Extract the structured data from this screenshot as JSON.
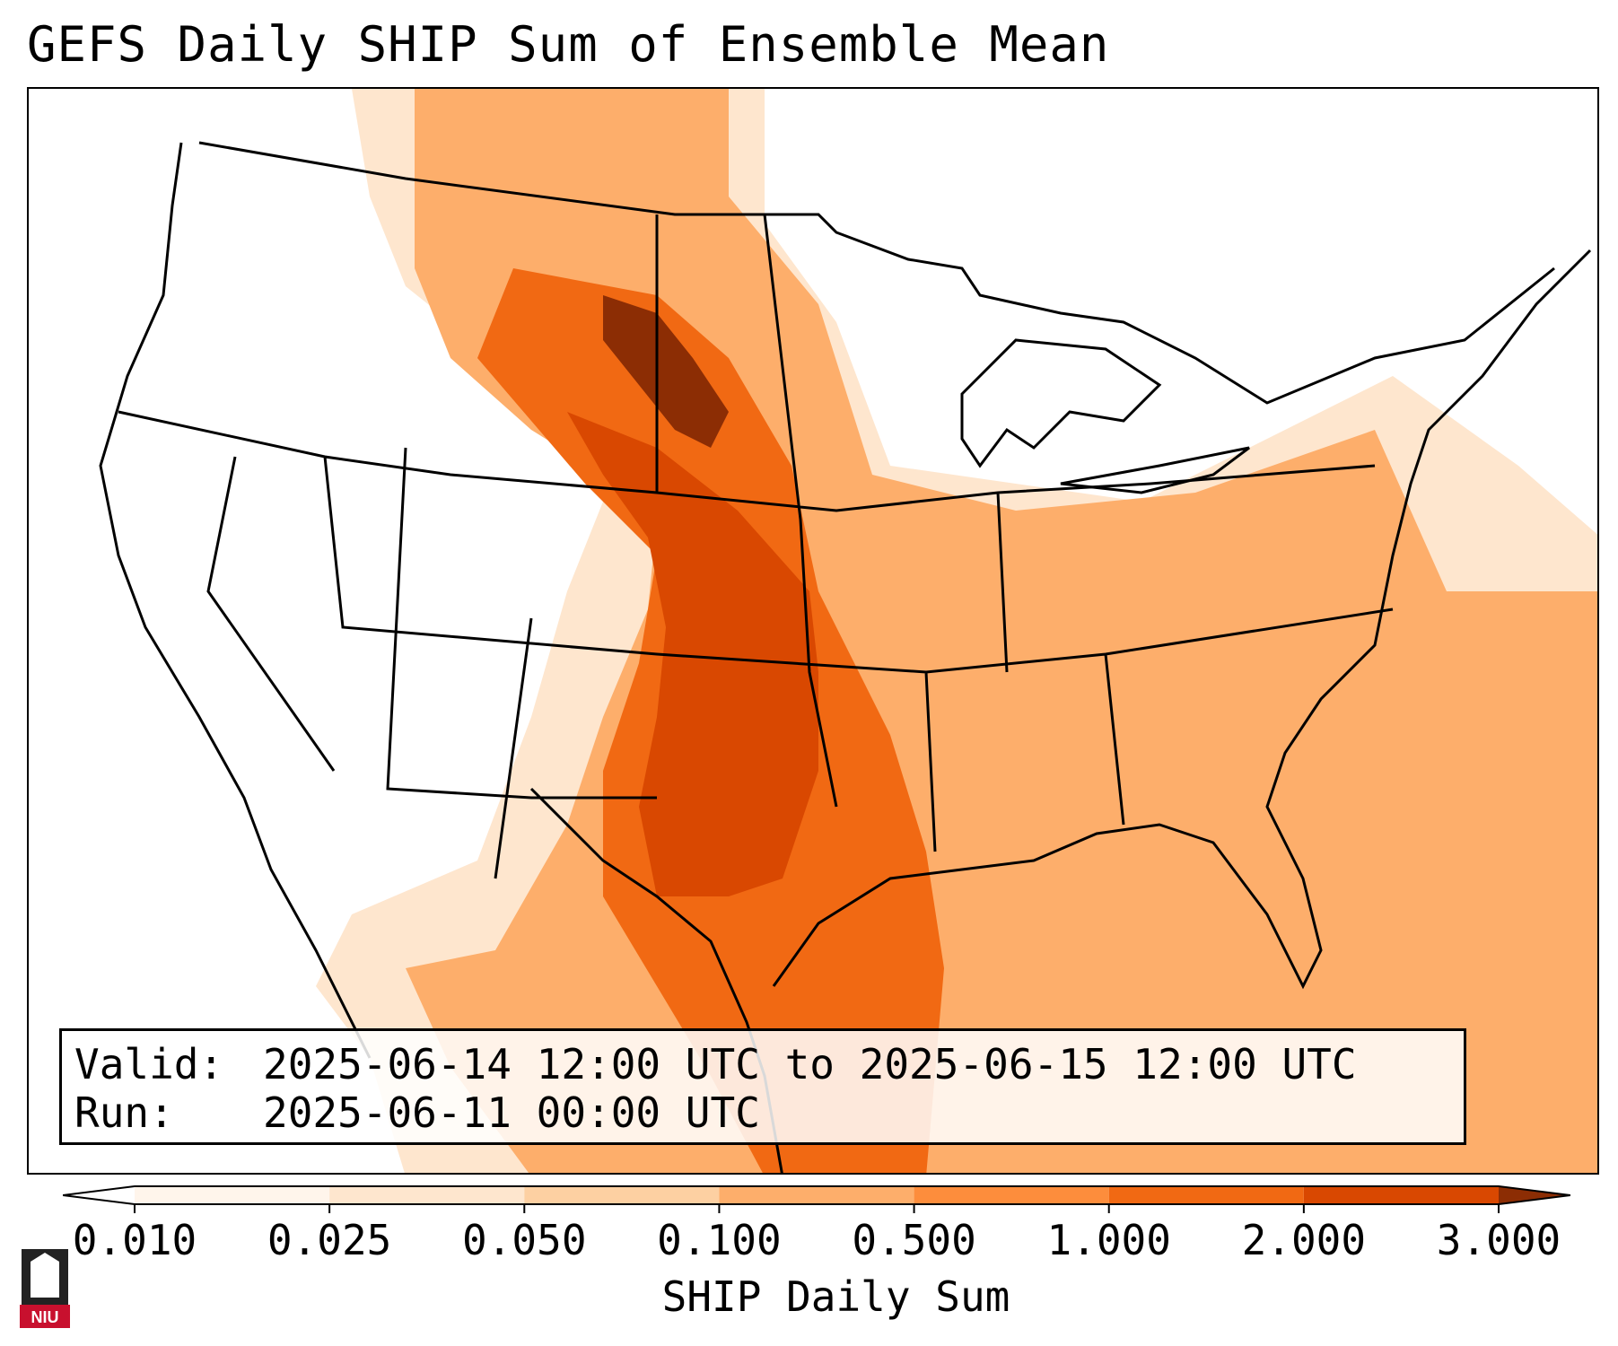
{
  "title": "GEFS Daily SHIP Sum of Ensemble Mean",
  "info": {
    "valid_label": "Valid:",
    "valid_value": "2025-06-14 12:00 UTC to 2025-06-15 12:00 UTC",
    "run_label": "Run:",
    "run_value": "2025-06-11 00:00 UTC"
  },
  "colorbar": {
    "label": "SHIP Daily Sum",
    "ticks": [
      "0.010",
      "0.025",
      "0.050",
      "0.100",
      "0.500",
      "1.000",
      "2.000",
      "3.000"
    ],
    "colors": [
      "#fff5eb",
      "#fee6ce",
      "#fdd0a2",
      "#fdae6b",
      "#fd8d3c",
      "#f16913",
      "#d94801",
      "#8c2d04"
    ],
    "extend": "both"
  },
  "logo": {
    "text": "NIU"
  }
}
